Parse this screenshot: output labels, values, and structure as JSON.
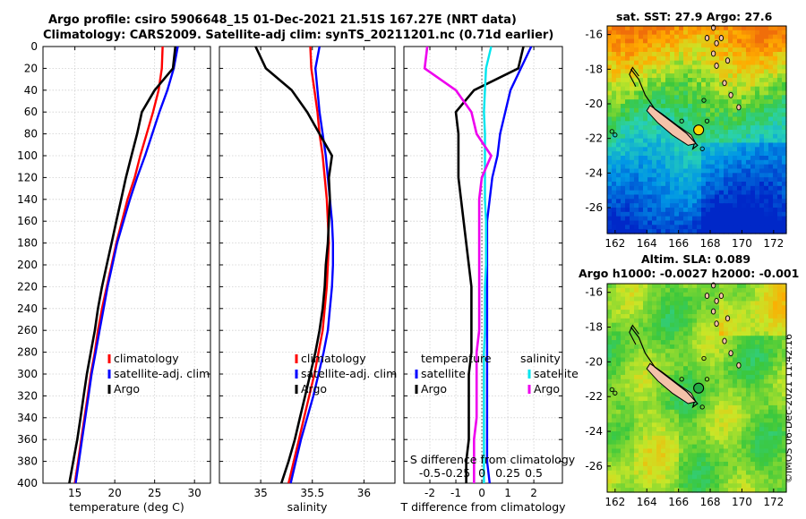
{
  "title_line1": "Argo profile: csiro 5906648_15 01-Dec-2021 21.51S 167.27E (NRT data)",
  "title_line2": "Climatology: CARS2009. Satellite-adj clim: synTS_20211201.nc (0.71d earlier)",
  "map_title_1": "sat. SST: 27.9 Argo: 27.6",
  "map_title_2a": "Altim. SLA: 0.089",
  "map_title_2b": "Argo h1000: -0.0027 h2000: -0.001",
  "side_text": "©IMOS 06-Dec-2021 11:42:16",
  "colors": {
    "climatology": "#ff0000",
    "satellite": "#0000ff",
    "argo": "#000000",
    "sat_salinity": "#00e5ee",
    "argo_salinity": "#ee00ee"
  },
  "chart_data": [
    {
      "type": "line",
      "id": "temperature",
      "xlabel": "temperature (deg C)",
      "ylabel": "",
      "xlim": [
        11,
        32
      ],
      "ylim": [
        400,
        0
      ],
      "xticks": [
        15,
        20,
        25,
        30
      ],
      "xtick_labels": [
        "15",
        "20",
        "25",
        "30"
      ],
      "yticks": [
        0,
        20,
        40,
        60,
        80,
        100,
        120,
        140,
        160,
        180,
        200,
        220,
        240,
        260,
        280,
        300,
        320,
        340,
        360,
        380,
        400
      ],
      "ytick_labels": [
        "0",
        "20",
        "40",
        "60",
        "80",
        "100",
        "120",
        "140",
        "160",
        "180",
        "200",
        "220",
        "240",
        "260",
        "280",
        "300",
        "320",
        "340",
        "360",
        "380",
        "400"
      ],
      "legend": [
        "climatology",
        "satellite-adj. clim",
        "Argo"
      ],
      "series": [
        {
          "name": "climatology",
          "color": "#ff0000",
          "x": [
            26.0,
            25.9,
            25.5,
            24.8,
            24.0,
            23.2,
            22.5,
            21.6,
            20.9,
            20.2,
            19.6,
            19.0,
            18.4,
            17.9,
            17.5,
            17.0,
            16.6,
            16.2,
            15.8,
            15.4,
            15.0
          ],
          "y": [
            0,
            20,
            40,
            60,
            80,
            100,
            120,
            140,
            160,
            180,
            200,
            220,
            240,
            260,
            280,
            300,
            320,
            340,
            360,
            380,
            400
          ]
        },
        {
          "name": "satellite-adj. clim",
          "color": "#0000ff",
          "x": [
            27.9,
            27.4,
            26.6,
            25.6,
            24.7,
            23.8,
            22.8,
            21.9,
            21.1,
            20.3,
            19.7,
            19.1,
            18.6,
            18.1,
            17.6,
            17.1,
            16.7,
            16.3,
            15.9,
            15.5,
            15.1
          ],
          "y": [
            0,
            20,
            40,
            60,
            80,
            100,
            120,
            140,
            160,
            180,
            200,
            220,
            240,
            260,
            280,
            300,
            320,
            340,
            360,
            380,
            400
          ]
        },
        {
          "name": "Argo",
          "color": "#000000",
          "x": [
            27.6,
            27.3,
            25.0,
            23.4,
            22.8,
            22.1,
            21.4,
            20.8,
            20.2,
            19.6,
            19.0,
            18.4,
            17.9,
            17.5,
            17.0,
            16.5,
            16.1,
            15.7,
            15.3,
            14.8,
            14.3
          ],
          "y": [
            0,
            20,
            40,
            60,
            80,
            100,
            120,
            140,
            160,
            180,
            200,
            220,
            240,
            260,
            280,
            300,
            320,
            340,
            360,
            380,
            400
          ]
        }
      ]
    },
    {
      "type": "line",
      "id": "salinity",
      "xlabel": "salinity",
      "ylabel": "",
      "xlim": [
        34.6,
        36.3
      ],
      "ylim": [
        400,
        0
      ],
      "xticks": [
        35,
        35.5,
        36
      ],
      "xtick_labels": [
        "35",
        "35.5",
        "36"
      ],
      "legend": [
        "climatology",
        "satellite-adj. clim",
        "Argo"
      ],
      "series": [
        {
          "name": "climatology",
          "color": "#ff0000",
          "x": [
            35.48,
            35.49,
            35.52,
            35.55,
            35.57,
            35.6,
            35.62,
            35.64,
            35.65,
            35.66,
            35.65,
            35.64,
            35.62,
            35.6,
            35.56,
            35.52,
            35.47,
            35.42,
            35.37,
            35.32,
            35.27
          ],
          "y": [
            0,
            20,
            40,
            60,
            80,
            100,
            120,
            140,
            160,
            180,
            200,
            220,
            240,
            260,
            280,
            300,
            320,
            340,
            360,
            380,
            400
          ]
        },
        {
          "name": "satellite-adj. clim",
          "color": "#0000ff",
          "x": [
            35.57,
            35.53,
            35.55,
            35.57,
            35.6,
            35.63,
            35.65,
            35.67,
            35.69,
            35.7,
            35.7,
            35.69,
            35.67,
            35.65,
            35.61,
            35.56,
            35.51,
            35.45,
            35.39,
            35.34,
            35.29
          ],
          "y": [
            0,
            20,
            40,
            60,
            80,
            100,
            120,
            140,
            160,
            180,
            200,
            220,
            240,
            260,
            280,
            300,
            320,
            340,
            360,
            380,
            400
          ]
        },
        {
          "name": "Argo",
          "color": "#000000",
          "x": [
            34.95,
            35.05,
            35.3,
            35.45,
            35.57,
            35.69,
            35.66,
            35.67,
            35.66,
            35.65,
            35.63,
            35.62,
            35.6,
            35.57,
            35.53,
            35.48,
            35.43,
            35.38,
            35.33,
            35.27,
            35.2
          ],
          "y": [
            0,
            20,
            40,
            60,
            80,
            100,
            120,
            140,
            160,
            180,
            200,
            220,
            240,
            260,
            280,
            300,
            320,
            340,
            360,
            380,
            400
          ]
        }
      ]
    },
    {
      "type": "line",
      "id": "differences",
      "xlabel": "T difference from climatology",
      "top_xlabel": "S difference from climatology",
      "xlim": [
        -3,
        3.1
      ],
      "ylim": [
        400,
        0
      ],
      "xticks": [
        -2,
        -1,
        0,
        1,
        2
      ],
      "xtick_labels": [
        "-2",
        "-1",
        "0",
        "1",
        "2"
      ],
      "top_xticks": [
        -0.5,
        -0.25,
        0,
        0.25,
        0.5
      ],
      "top_xtick_labels": [
        "-0.5",
        "-0.25",
        "0",
        "0.25",
        "0.5"
      ],
      "s_scale_per_t": 0.25,
      "legend_left_title": "temperature",
      "legend_right_title": "salinity",
      "legend": [
        "satellite",
        "Argo",
        "satellite",
        "Argo"
      ],
      "series": [
        {
          "name": "temperature satellite",
          "color": "#0000ff",
          "x": [
            1.9,
            1.5,
            1.1,
            0.9,
            0.7,
            0.6,
            0.4,
            0.3,
            0.2,
            0.2,
            0.2,
            0.2,
            0.2,
            0.2,
            0.2,
            0.2,
            0.2,
            0.2,
            0.2,
            0.2,
            0.3
          ],
          "y": [
            0,
            20,
            40,
            60,
            80,
            100,
            120,
            140,
            160,
            180,
            200,
            220,
            240,
            260,
            280,
            300,
            320,
            340,
            360,
            380,
            400
          ]
        },
        {
          "name": "temperature Argo",
          "color": "#000000",
          "x": [
            1.6,
            1.4,
            -0.3,
            -1.0,
            -0.9,
            -0.9,
            -0.9,
            -0.8,
            -0.7,
            -0.6,
            -0.5,
            -0.4,
            -0.4,
            -0.4,
            -0.4,
            -0.5,
            -0.5,
            -0.5,
            -0.5,
            -0.6,
            -0.6
          ],
          "y": [
            0,
            20,
            40,
            60,
            80,
            100,
            120,
            140,
            160,
            180,
            200,
            220,
            240,
            260,
            280,
            300,
            320,
            340,
            360,
            380,
            400
          ]
        },
        {
          "name": "salinity satellite",
          "color": "#00e5ee",
          "x": [
            0.36,
            0.16,
            0.12,
            0.08,
            0.12,
            0.12,
            0.12,
            0.12,
            0.16,
            0.16,
            0.16,
            0.12,
            0.12,
            0.12,
            0.08,
            0.08,
            0.08,
            0.08,
            0.08,
            0.08,
            0.08
          ],
          "y": [
            0,
            20,
            40,
            60,
            80,
            100,
            120,
            140,
            160,
            180,
            200,
            220,
            240,
            260,
            280,
            300,
            320,
            340,
            360,
            380,
            400
          ]
        },
        {
          "name": "salinity Argo",
          "color": "#ee00ee",
          "x": [
            -2.1,
            -2.2,
            -1.0,
            -0.4,
            -0.2,
            0.36,
            0.0,
            -0.1,
            -0.1,
            -0.1,
            -0.1,
            -0.1,
            -0.1,
            -0.1,
            -0.2,
            -0.2,
            -0.2,
            -0.2,
            -0.3,
            -0.3,
            -0.3
          ],
          "y": [
            0,
            20,
            40,
            60,
            80,
            100,
            120,
            140,
            160,
            180,
            200,
            220,
            240,
            260,
            280,
            300,
            320,
            340,
            360,
            380,
            400
          ]
        }
      ]
    },
    {
      "type": "heatmap",
      "id": "sst_map",
      "xlim": [
        161.5,
        172.8
      ],
      "ylim": [
        -27.5,
        -15.5
      ],
      "xticks": [
        162,
        164,
        166,
        168,
        170,
        172
      ],
      "xtick_labels": [
        "162",
        "164",
        "166",
        "168",
        "170",
        "172"
      ],
      "yticks": [
        -16,
        -18,
        -20,
        -22,
        -24,
        -26
      ],
      "ytick_labels": [
        "-16",
        "-18",
        "-20",
        "-22",
        "-24",
        "-26"
      ],
      "marker": {
        "lon": 167.27,
        "lat": -21.51,
        "color": "#ffd700"
      }
    },
    {
      "type": "heatmap",
      "id": "sla_map",
      "xlim": [
        161.5,
        172.8
      ],
      "ylim": [
        -27.5,
        -15.5
      ],
      "xticks": [
        162,
        164,
        166,
        168,
        170,
        172
      ],
      "xtick_labels": [
        "162",
        "164",
        "166",
        "168",
        "170",
        "172"
      ],
      "yticks": [
        -16,
        -18,
        -20,
        -22,
        -24,
        -26
      ],
      "ytick_labels": [
        "-16",
        "-18",
        "-20",
        "-22",
        "-24",
        "-26"
      ],
      "marker": {
        "lon": 167.27,
        "lat": -21.51,
        "color": "#22aa44"
      }
    }
  ]
}
